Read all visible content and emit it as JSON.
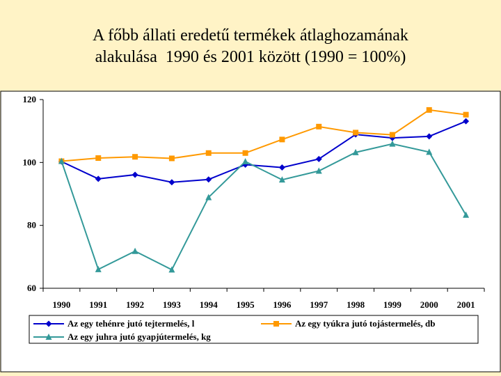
{
  "title_lines": [
    "A főbb állati eredetű termékek átlaghozamának",
    "alakulása  1990 és 2001 között (1990 = 100%)"
  ],
  "chart_data": {
    "type": "line",
    "title": "A főbb állati eredetű termékek átlaghozamának alakulása  1990 és 2001 között (1990 = 100%)",
    "x": [
      "1990",
      "1991",
      "1992",
      "1993",
      "1994",
      "1995",
      "1996",
      "1997",
      "1998",
      "1999",
      "2000",
      "2001"
    ],
    "yticks": [
      "120",
      "100",
      "80",
      "60"
    ],
    "ylim": [
      60,
      120
    ],
    "grid": false,
    "legend_position": "bottom",
    "series": [
      {
        "name": "Az egy tehénre jutó tejtermelés, l",
        "color": "#0000CC",
        "marker": "diamond",
        "values": [
          100.3,
          94.8,
          96.1,
          93.7,
          94.6,
          99.3,
          98.4,
          101.1,
          108.9,
          107.8,
          108.3,
          113.1
        ]
      },
      {
        "name": "Az egy tyúkra jutó tojástermelés, db",
        "color": "#FF9900",
        "marker": "square",
        "values": [
          100.4,
          101.4,
          101.8,
          101.3,
          103.0,
          103.0,
          107.3,
          111.4,
          109.5,
          108.8,
          116.7,
          115.2
        ]
      },
      {
        "name": "Az egy juhra jutó gyapjútermelés, kg",
        "color": "#339999",
        "marker": "triangle",
        "values": [
          100.4,
          66.0,
          71.8,
          65.9,
          88.9,
          100.3,
          94.5,
          97.3,
          103.2,
          105.9,
          103.3,
          83.3
        ]
      }
    ]
  }
}
